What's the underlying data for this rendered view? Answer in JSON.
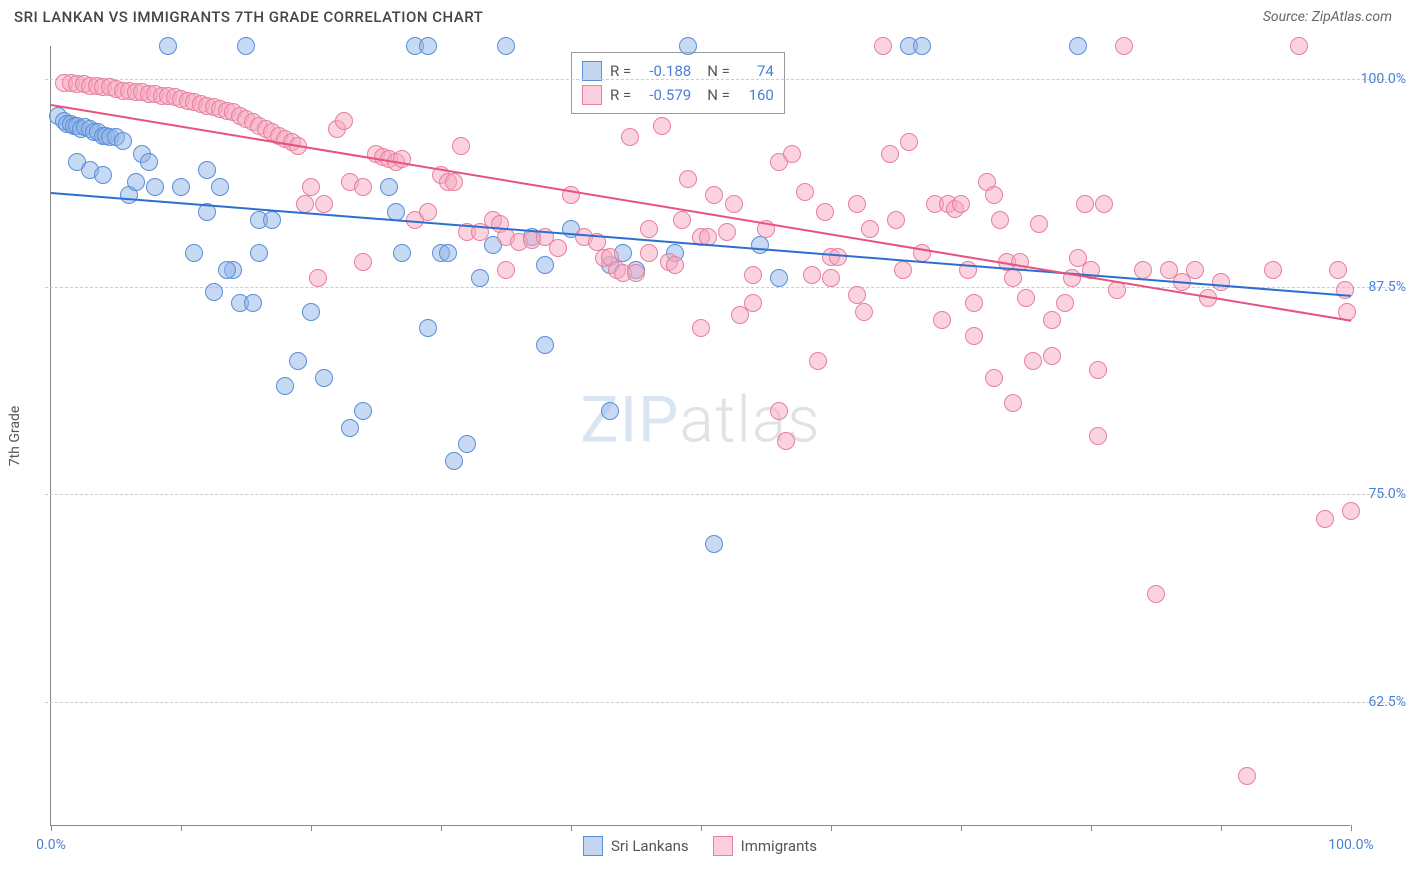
{
  "title": "SRI LANKAN VS IMMIGRANTS 7TH GRADE CORRELATION CHART",
  "source": "Source: ZipAtlas.com",
  "watermark_bold": "ZIP",
  "watermark_thin": "atlas",
  "y_axis_label": "7th Grade",
  "chart": {
    "type": "scatter",
    "background_color": "#ffffff",
    "grid_color": "#cccccc",
    "axis_color": "#888888",
    "xlim": [
      0,
      100
    ],
    "ylim": [
      55,
      102
    ],
    "x_ticks": [
      0,
      10,
      20,
      30,
      40,
      50,
      60,
      70,
      80,
      90,
      100
    ],
    "x_tick_labels": {
      "0": "0.0%",
      "100": "100.0%"
    },
    "y_gridlines": [
      62.5,
      75.0,
      87.5,
      100.0
    ],
    "y_tick_labels": [
      "62.5%",
      "75.0%",
      "87.5%",
      "100.0%"
    ],
    "marker_radius": 9,
    "marker_opacity": 0.55,
    "series": [
      {
        "name": "Sri Lankans",
        "color": "#8fb4e8",
        "fill": "rgba(143,180,232,0.5)",
        "stroke": "#5a8fd8",
        "trend_color": "#2d6fd0",
        "R": "-0.188",
        "N": "74",
        "trend": {
          "x1": 0,
          "y1": 93.2,
          "x2": 100,
          "y2": 87.0
        },
        "points": [
          [
            0.5,
            97.8
          ],
          [
            1,
            97.5
          ],
          [
            1.2,
            97.3
          ],
          [
            1.5,
            97.3
          ],
          [
            1.8,
            97.2
          ],
          [
            2,
            97.2
          ],
          [
            2.3,
            97
          ],
          [
            2.6,
            97.1
          ],
          [
            3,
            97
          ],
          [
            3.3,
            96.8
          ],
          [
            3.6,
            96.8
          ],
          [
            4,
            96.6
          ],
          [
            4.2,
            96.6
          ],
          [
            4.5,
            96.5
          ],
          [
            5,
            96.5
          ],
          [
            5.5,
            96.3
          ],
          [
            6,
            93
          ],
          [
            6.5,
            93.8
          ],
          [
            7,
            95.5
          ],
          [
            7.5,
            95
          ],
          [
            2,
            95
          ],
          [
            3,
            94.5
          ],
          [
            4,
            94.2
          ],
          [
            8,
            93.5
          ],
          [
            9,
            102
          ],
          [
            10,
            93.5
          ],
          [
            11,
            89.5
          ],
          [
            12,
            92
          ],
          [
            13,
            93.5
          ],
          [
            14,
            88.5
          ],
          [
            15,
            102
          ],
          [
            16,
            91.5
          ],
          [
            12.5,
            87.2
          ],
          [
            13.5,
            88.5
          ],
          [
            14.5,
            86.5
          ],
          [
            15.5,
            86.5
          ],
          [
            12,
            94.5
          ],
          [
            17,
            91.5
          ],
          [
            18,
            81.5
          ],
          [
            20,
            86
          ],
          [
            21,
            82
          ],
          [
            16,
            89.5
          ],
          [
            23,
            79
          ],
          [
            24,
            80
          ],
          [
            26,
            93.5
          ],
          [
            26.5,
            92
          ],
          [
            27,
            89.5
          ],
          [
            28,
            102
          ],
          [
            29,
            102
          ],
          [
            30,
            89.5
          ],
          [
            30.5,
            89.5
          ],
          [
            32,
            78
          ],
          [
            33,
            88
          ],
          [
            34,
            90
          ],
          [
            35,
            102
          ],
          [
            37,
            90.5
          ],
          [
            38,
            88.8
          ],
          [
            43,
            88.8
          ],
          [
            44,
            89.5
          ],
          [
            45,
            88.5
          ],
          [
            38,
            84
          ],
          [
            48,
            89.5
          ],
          [
            43,
            80
          ],
          [
            49,
            102
          ],
          [
            51,
            72
          ],
          [
            54.5,
            90
          ],
          [
            56,
            88
          ],
          [
            66,
            102
          ],
          [
            67,
            102
          ],
          [
            79,
            102
          ],
          [
            40,
            91
          ],
          [
            29,
            85
          ],
          [
            31,
            77
          ],
          [
            19,
            83
          ]
        ]
      },
      {
        "name": "Immigrants",
        "color": "#f5a8bd",
        "fill": "rgba(245,168,189,0.5)",
        "stroke": "#e87fa0",
        "trend_color": "#e8527f",
        "R": "-0.579",
        "N": "160",
        "trend": {
          "x1": 0,
          "y1": 98.5,
          "x2": 100,
          "y2": 85.5
        },
        "points": [
          [
            1,
            99.8
          ],
          [
            1.5,
            99.8
          ],
          [
            2,
            99.7
          ],
          [
            2.5,
            99.7
          ],
          [
            3,
            99.6
          ],
          [
            3.5,
            99.6
          ],
          [
            4,
            99.5
          ],
          [
            4.5,
            99.5
          ],
          [
            5,
            99.4
          ],
          [
            5.5,
            99.3
          ],
          [
            6,
            99.3
          ],
          [
            6.5,
            99.2
          ],
          [
            7,
            99.2
          ],
          [
            7.5,
            99.1
          ],
          [
            8,
            99.1
          ],
          [
            8.5,
            99
          ],
          [
            9,
            99
          ],
          [
            9.5,
            98.9
          ],
          [
            10,
            98.8
          ],
          [
            10.5,
            98.7
          ],
          [
            11,
            98.6
          ],
          [
            11.5,
            98.5
          ],
          [
            12,
            98.4
          ],
          [
            12.5,
            98.3
          ],
          [
            13,
            98.2
          ],
          [
            13.5,
            98.1
          ],
          [
            14,
            98
          ],
          [
            14.5,
            97.8
          ],
          [
            15,
            97.6
          ],
          [
            15.5,
            97.4
          ],
          [
            16,
            97.2
          ],
          [
            16.5,
            97
          ],
          [
            17,
            96.8
          ],
          [
            17.5,
            96.6
          ],
          [
            18,
            96.4
          ],
          [
            18.5,
            96.2
          ],
          [
            19,
            96
          ],
          [
            19.5,
            92.5
          ],
          [
            20,
            93.5
          ],
          [
            21,
            92.5
          ],
          [
            22,
            97
          ],
          [
            22.5,
            97.5
          ],
          [
            23,
            93.8
          ],
          [
            24,
            93.5
          ],
          [
            25,
            95.5
          ],
          [
            25.5,
            95.3
          ],
          [
            26,
            95.2
          ],
          [
            26.5,
            95
          ],
          [
            27,
            95.2
          ],
          [
            28,
            91.5
          ],
          [
            29,
            92
          ],
          [
            30,
            94.2
          ],
          [
            30.5,
            93.8
          ],
          [
            31,
            93.8
          ],
          [
            32,
            90.8
          ],
          [
            33,
            90.8
          ],
          [
            34,
            91.5
          ],
          [
            34.5,
            91.3
          ],
          [
            35,
            90.5
          ],
          [
            36,
            90.2
          ],
          [
            37,
            90.3
          ],
          [
            38,
            90.5
          ],
          [
            39,
            89.8
          ],
          [
            41,
            90.5
          ],
          [
            42,
            90.2
          ],
          [
            42.5,
            89.2
          ],
          [
            43,
            89.3
          ],
          [
            43.5,
            88.5
          ],
          [
            44,
            88.3
          ],
          [
            44.5,
            96.5
          ],
          [
            45,
            88.3
          ],
          [
            46,
            89.5
          ],
          [
            47,
            97.2
          ],
          [
            47.5,
            89
          ],
          [
            48,
            88.8
          ],
          [
            48.5,
            91.5
          ],
          [
            49,
            94
          ],
          [
            50,
            90.5
          ],
          [
            50.5,
            90.5
          ],
          [
            51,
            93
          ],
          [
            52,
            90.8
          ],
          [
            52.5,
            92.5
          ],
          [
            53,
            85.8
          ],
          [
            54,
            86.5
          ],
          [
            55,
            91
          ],
          [
            56,
            95
          ],
          [
            57,
            95.5
          ],
          [
            58,
            93.2
          ],
          [
            59,
            83
          ],
          [
            59.5,
            92
          ],
          [
            60,
            89.3
          ],
          [
            60.5,
            89.3
          ],
          [
            56.5,
            78.2
          ],
          [
            62,
            92.5
          ],
          [
            63,
            91
          ],
          [
            64,
            102
          ],
          [
            64.5,
            95.5
          ],
          [
            65,
            91.5
          ],
          [
            65.5,
            88.5
          ],
          [
            66,
            96.2
          ],
          [
            67,
            89.5
          ],
          [
            68,
            92.5
          ],
          [
            69,
            92.5
          ],
          [
            69.5,
            92.2
          ],
          [
            70,
            92.5
          ],
          [
            70.5,
            88.5
          ],
          [
            71,
            86.5
          ],
          [
            72,
            93.8
          ],
          [
            72.5,
            93
          ],
          [
            73,
            91.5
          ],
          [
            73.5,
            89
          ],
          [
            74,
            88
          ],
          [
            74.5,
            89
          ],
          [
            75,
            86.8
          ],
          [
            75.5,
            83
          ],
          [
            76,
            91.3
          ],
          [
            77,
            83.3
          ],
          [
            78,
            86.5
          ],
          [
            79,
            89.2
          ],
          [
            79.5,
            92.5
          ],
          [
            80,
            88.5
          ],
          [
            80.5,
            82.5
          ],
          [
            81,
            92.5
          ],
          [
            82,
            87.3
          ],
          [
            82.5,
            102
          ],
          [
            84,
            88.5
          ],
          [
            85,
            69
          ],
          [
            86,
            88.5
          ],
          [
            87,
            87.8
          ],
          [
            88,
            88.5
          ],
          [
            89,
            86.8
          ],
          [
            90,
            87.8
          ],
          [
            92,
            58
          ],
          [
            94,
            88.5
          ],
          [
            96,
            102
          ],
          [
            98,
            73.5
          ],
          [
            99,
            88.5
          ],
          [
            99.5,
            87.3
          ],
          [
            99.7,
            86
          ],
          [
            100,
            74
          ],
          [
            60,
            88
          ],
          [
            62,
            87
          ],
          [
            56,
            80
          ],
          [
            71,
            84.5
          ],
          [
            72.5,
            82
          ],
          [
            77,
            85.5
          ],
          [
            80.5,
            78.5
          ],
          [
            50,
            85
          ],
          [
            40,
            93
          ],
          [
            46,
            91
          ],
          [
            35,
            88.5
          ],
          [
            31.5,
            96
          ],
          [
            24,
            89
          ],
          [
            20.5,
            88
          ],
          [
            68.5,
            85.5
          ],
          [
            78.5,
            88
          ],
          [
            74,
            80.5
          ],
          [
            62.5,
            86
          ],
          [
            58.5,
            88.2
          ],
          [
            54,
            88.2
          ]
        ]
      }
    ]
  },
  "stats_legend": {
    "rows": [
      {
        "swatch": "rgba(143,180,232,0.55)",
        "border": "#5a8fd8",
        "r_label": "R =",
        "r_val": "-0.188",
        "n_label": "N =",
        "n_val": "74"
      },
      {
        "swatch": "rgba(245,168,189,0.55)",
        "border": "#e87fa0",
        "r_label": "R =",
        "r_val": "-0.579",
        "n_label": "N =",
        "n_val": "160"
      }
    ]
  },
  "bottom_legend": [
    {
      "swatch": "rgba(143,180,232,0.55)",
      "border": "#5a8fd8",
      "label": "Sri Lankans"
    },
    {
      "swatch": "rgba(245,168,189,0.55)",
      "border": "#e87fa0",
      "label": "Immigrants"
    }
  ]
}
